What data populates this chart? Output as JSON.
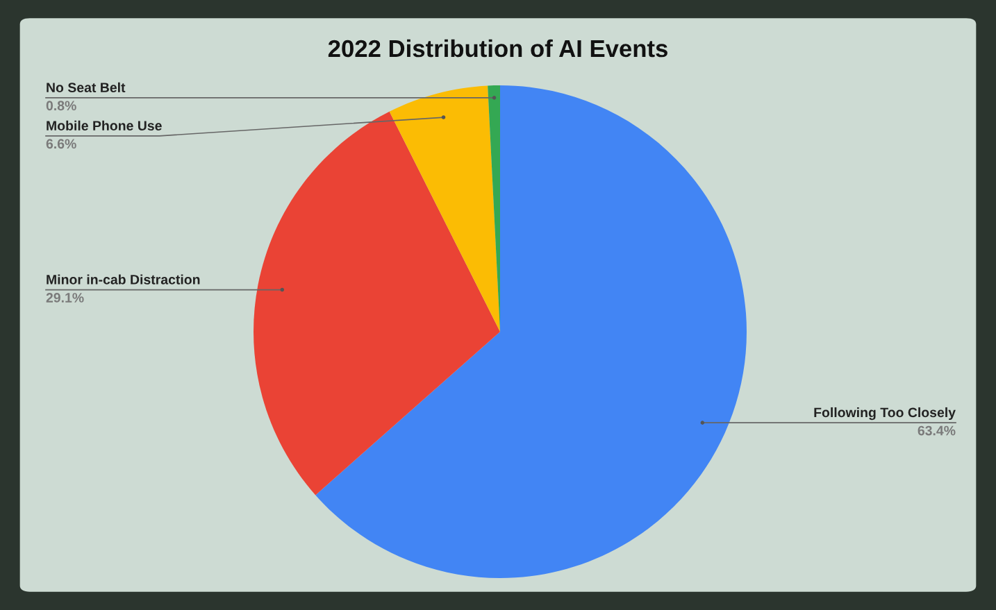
{
  "chart_data": {
    "type": "pie",
    "title": "2022 Distribution of AI Events",
    "categories": [
      "Following Too Closely",
      "Minor in-cab Distraction",
      "Mobile Phone Use",
      "No Seat Belt"
    ],
    "values": [
      63.4,
      29.1,
      6.6,
      0.8
    ],
    "value_labels": [
      "63.4%",
      "29.1%",
      "6.6%",
      "0.8%"
    ],
    "colors": [
      "#4285f4",
      "#ea4335",
      "#fbbc04",
      "#34a853"
    ],
    "legend": false
  }
}
